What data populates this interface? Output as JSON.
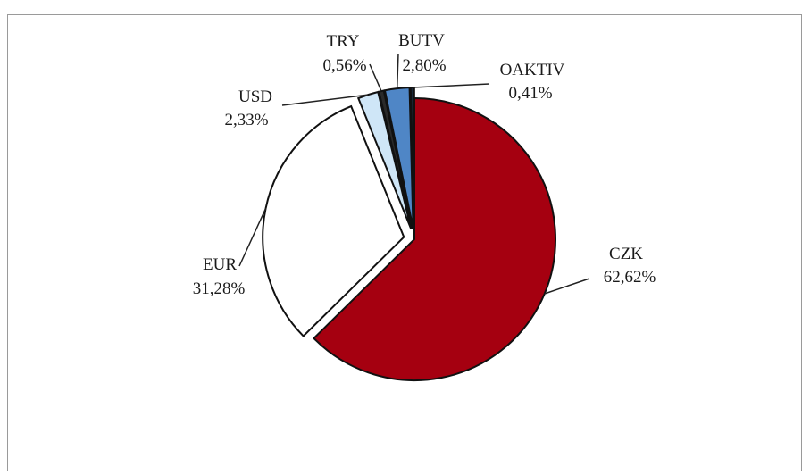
{
  "chart_data": {
    "type": "pie",
    "title": "",
    "slices": [
      {
        "label": "CZK",
        "value": 62.62,
        "value_label": "62,62%",
        "color": "#a50010",
        "exploded": false
      },
      {
        "label": "EUR",
        "value": 31.28,
        "value_label": "31,28%",
        "color": "#ffffff",
        "exploded": true
      },
      {
        "label": "USD",
        "value": 2.33,
        "value_label": "2,33%",
        "color": "#cfe6f7",
        "exploded": true
      },
      {
        "label": "TRY",
        "value": 0.56,
        "value_label": "0,56%",
        "color": "#2a2a2a",
        "exploded": true
      },
      {
        "label": "BUTV",
        "value": 2.8,
        "value_label": "2,80%",
        "color": "#4f86c6",
        "exploded": true
      },
      {
        "label": "OAKTIV",
        "value": 0.41,
        "value_label": "0,41%",
        "color": "#1a2a3a",
        "exploded": true
      }
    ],
    "legend": "none",
    "start_slice": "CZK",
    "direction": "clockwise from top"
  }
}
